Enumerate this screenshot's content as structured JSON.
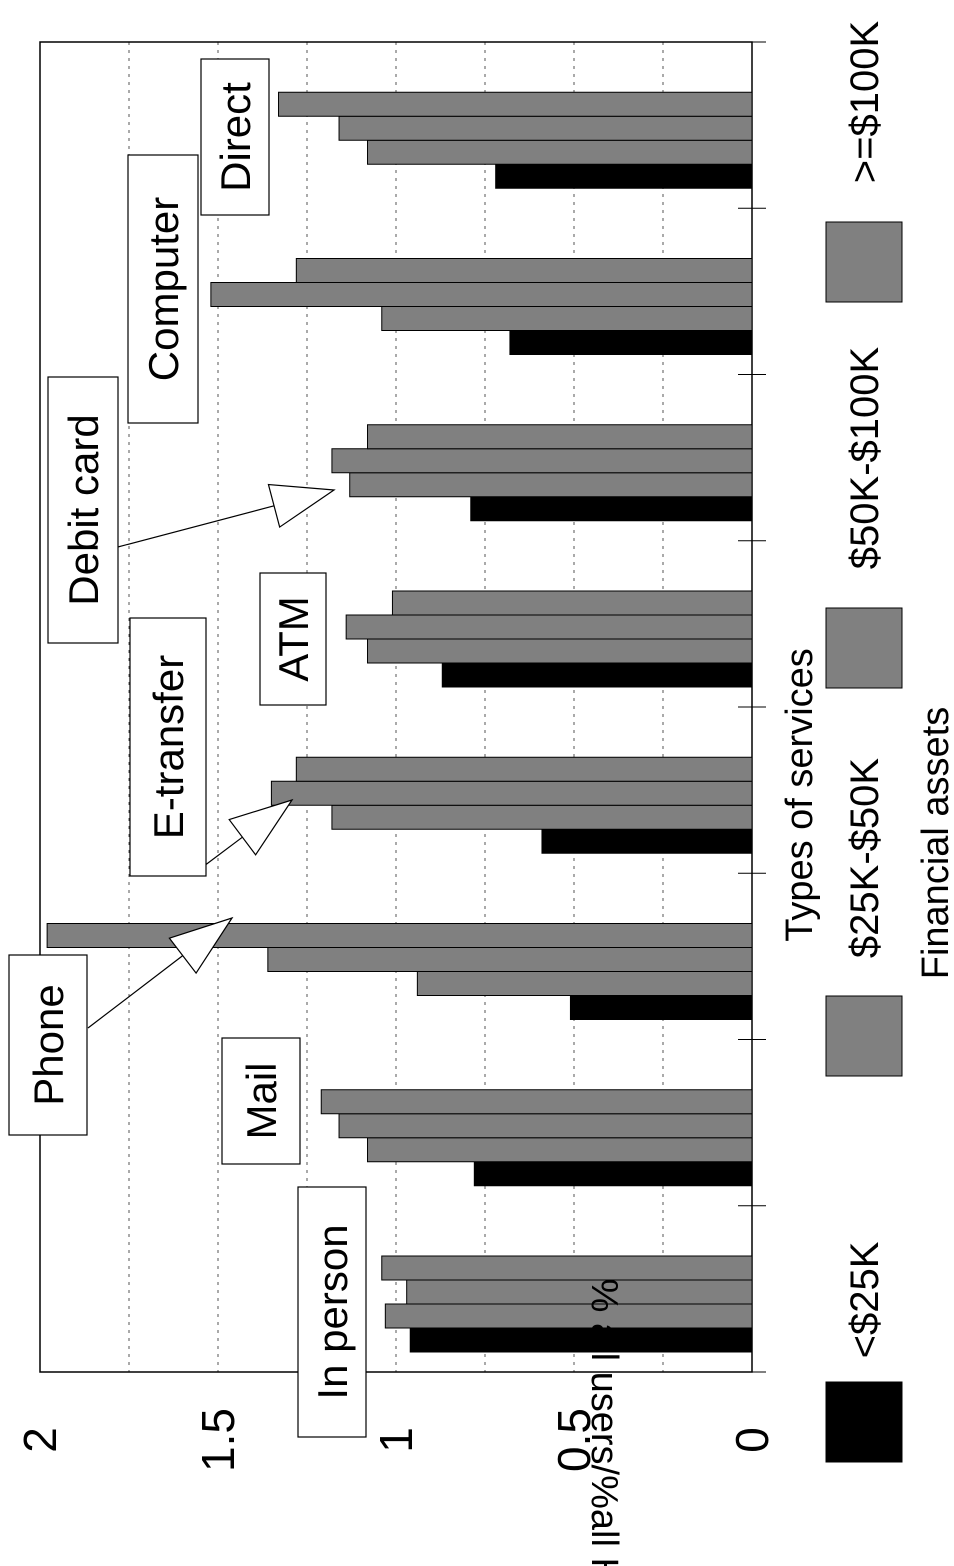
{
  "chart_data": {
    "type": "bar",
    "orientation": "rotated-90",
    "title": "",
    "xlabel": "Types of services",
    "ylabel": "% all users/%all HHs",
    "ylim": [
      0,
      2
    ],
    "yticks": [
      "0",
      "0.5",
      "1",
      "1.5",
      "2"
    ],
    "grid": true,
    "categories": [
      "In person",
      "Mail",
      "Phone",
      "E-transfer",
      "ATM",
      "Debit card",
      "Computer",
      "Direct"
    ],
    "legend_title": "Financial assets",
    "legend_position": "right",
    "series": [
      {
        "name": "<$25K",
        "color": "#000000",
        "values": [
          0.96,
          0.78,
          0.51,
          0.59,
          0.87,
          0.79,
          0.68,
          0.72
        ]
      },
      {
        "name": "$25K-$50K",
        "color": "#808080",
        "values": [
          1.03,
          1.08,
          0.94,
          1.18,
          1.08,
          1.13,
          1.04,
          1.08
        ]
      },
      {
        "name": "$50K-$100K",
        "color": "#808080",
        "values": [
          0.97,
          1.16,
          1.36,
          1.35,
          1.14,
          1.18,
          1.52,
          1.16
        ]
      },
      {
        "name": ">=$100K",
        "color": "#808080",
        "values": [
          1.04,
          1.21,
          1.98,
          1.28,
          1.01,
          1.08,
          1.28,
          1.33
        ]
      }
    ]
  }
}
